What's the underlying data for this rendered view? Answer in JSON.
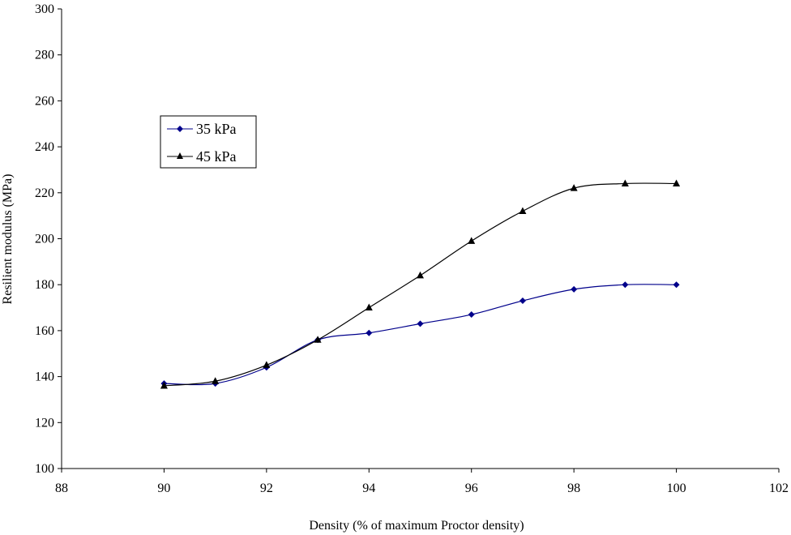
{
  "chart_data": {
    "type": "line",
    "title": "",
    "xlabel": "Density (% of maximum Proctor density)",
    "ylabel": "Resilient modulus (MPa)",
    "xlim": [
      88,
      102
    ],
    "ylim": [
      100,
      300
    ],
    "xticks": [
      88,
      90,
      92,
      94,
      96,
      98,
      100,
      102
    ],
    "yticks": [
      100,
      120,
      140,
      160,
      180,
      200,
      220,
      240,
      260,
      280,
      300
    ],
    "grid": false,
    "legend_position": "upper-left",
    "series": [
      {
        "name": "35 kPa",
        "color": "#00008B",
        "marker": "diamond",
        "x": [
          90,
          91,
          92,
          93,
          94,
          95,
          96,
          97,
          98,
          99,
          100
        ],
        "y": [
          137,
          137,
          144,
          156,
          159,
          163,
          167,
          173,
          178,
          180,
          180
        ]
      },
      {
        "name": "45 kPa",
        "color": "#000000",
        "marker": "triangle",
        "x": [
          90,
          91,
          92,
          93,
          94,
          95,
          96,
          97,
          98,
          99,
          100
        ],
        "y": [
          136,
          138,
          145,
          156,
          170,
          184,
          199,
          212,
          222,
          224,
          224
        ]
      }
    ]
  }
}
